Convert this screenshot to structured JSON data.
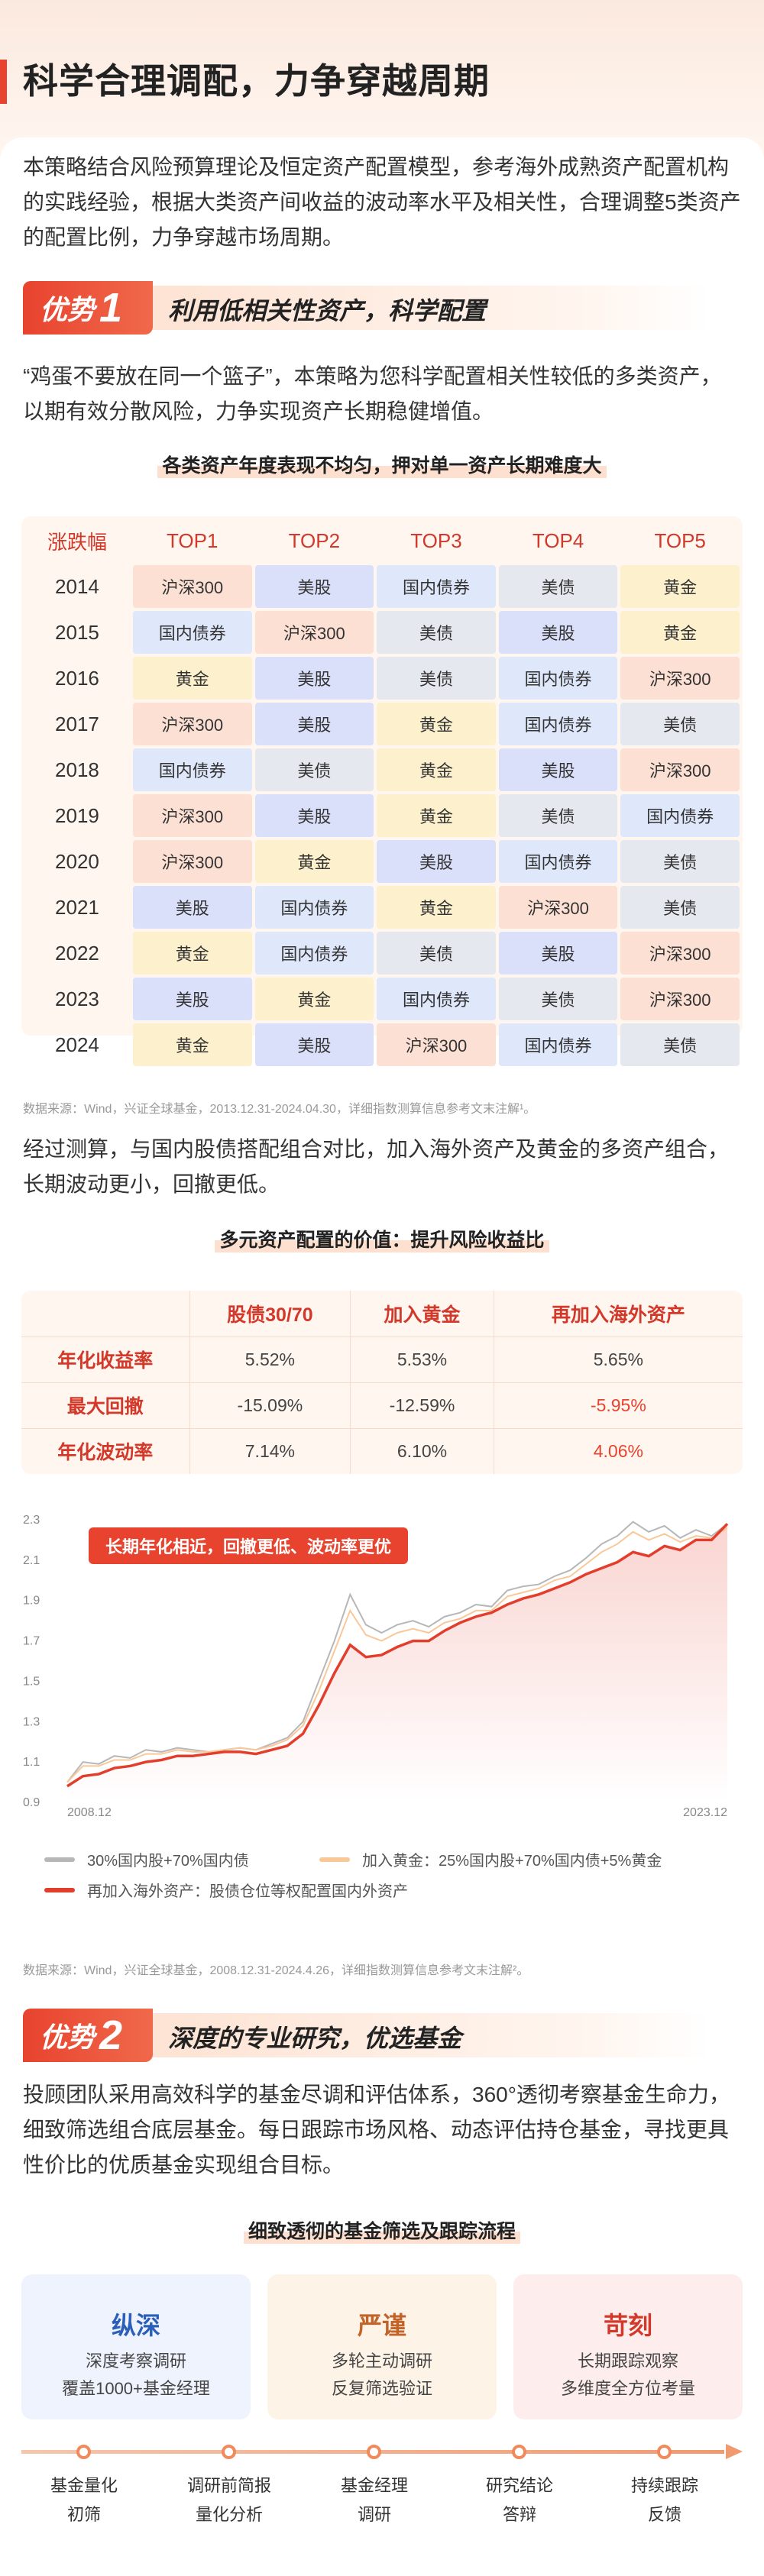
{
  "header": {
    "title": "科学合理调配，力争穿越周期"
  },
  "intro": "本策略结合风险预算理论及恒定资产配置模型，参考海外成熟资产配置机构的实践经验，根据大类资产间收益的波动率水平及相关性，合理调整5类资产的配置比例，力争穿越市场周期。",
  "adv1": {
    "word": "优势",
    "num": "1",
    "text": "利用低相关性资产，科学配置"
  },
  "adv1_para": "“鸡蛋不要放在同一个篮子”，本策略为您科学配置相关性较低的多类资产，以期有效分散风险，力争实现资产长期稳健增值。",
  "rank_title": "各类资产年度表现不均匀，押对单一资产长期难度大",
  "rank_table": {
    "headers": [
      "涨跌幅",
      "TOP1",
      "TOP2",
      "TOP3",
      "TOP4",
      "TOP5"
    ],
    "rows": [
      [
        "2014",
        "沪深300",
        "美股",
        "国内债券",
        "美债",
        "黄金"
      ],
      [
        "2015",
        "国内债券",
        "沪深300",
        "美债",
        "美股",
        "黄金"
      ],
      [
        "2016",
        "黄金",
        "美股",
        "美债",
        "国内债券",
        "沪深300"
      ],
      [
        "2017",
        "沪深300",
        "美股",
        "黄金",
        "国内债券",
        "美债"
      ],
      [
        "2018",
        "国内债券",
        "美债",
        "黄金",
        "美股",
        "沪深300"
      ],
      [
        "2019",
        "沪深300",
        "美股",
        "黄金",
        "美债",
        "国内债券"
      ],
      [
        "2020",
        "沪深300",
        "黄金",
        "美股",
        "国内债券",
        "美债"
      ],
      [
        "2021",
        "美股",
        "国内债券",
        "黄金",
        "沪深300",
        "美债"
      ],
      [
        "2022",
        "黄金",
        "国内债券",
        "美债",
        "美股",
        "沪深300"
      ],
      [
        "2023",
        "美股",
        "黄金",
        "国内债券",
        "美债",
        "沪深300"
      ],
      [
        "2024",
        "黄金",
        "美股",
        "沪深300",
        "国内债券",
        "美债"
      ]
    ],
    "asset_colors": {
      "沪深300": "#fde0d4",
      "美股": "#dbe0fa",
      "国内债券": "#dfe7fb",
      "美债": "#e6e8ef",
      "黄金": "#fdf0cc"
    }
  },
  "rank_source": "数据来源：Wind，兴证全球基金，2013.12.31-2024.04.30，详细指数测算信息参考文末注解¹。",
  "measure_para": "经过测算，与国内股债搭配组合对比，加入海外资产及黄金的多资产组合，长期波动更小，回撤更低。",
  "value_title": "多元资产配置的价值：提升风险收益比",
  "value_table": {
    "headers": [
      "",
      "股债30/70",
      "加入黄金",
      "再加入海外资产"
    ],
    "rows": [
      {
        "label": "年化收益率",
        "cells": [
          "5.52%",
          "5.53%",
          "5.65%"
        ]
      },
      {
        "label": "最大回撤",
        "cells": [
          "-15.09%",
          "-12.59%",
          "-5.95%"
        ]
      },
      {
        "label": "年化波动率",
        "cells": [
          "7.14%",
          "6.10%",
          "4.06%"
        ]
      }
    ],
    "highlight_color": "#e8432f"
  },
  "chart_data": {
    "type": "line",
    "title": "",
    "callout": "长期年化相近，回撤更低、波动率更优",
    "xlabel": "",
    "ylabel": "",
    "x_start": "2008.12",
    "x_end": "2023.12",
    "ylim": [
      0.9,
      2.3
    ],
    "yticks": [
      0.9,
      1.1,
      1.3,
      1.5,
      1.7,
      1.9,
      2.1,
      2.3
    ],
    "grid": false,
    "legend_position": "bottom",
    "series": [
      {
        "name": "30%国内股+70%国内债",
        "color": "#b7b7b7",
        "values": [
          1.0,
          1.1,
          1.09,
          1.13,
          1.12,
          1.16,
          1.15,
          1.17,
          1.16,
          1.15,
          1.16,
          1.17,
          1.16,
          1.19,
          1.22,
          1.3,
          1.5,
          1.7,
          1.93,
          1.78,
          1.74,
          1.78,
          1.8,
          1.77,
          1.82,
          1.84,
          1.88,
          1.87,
          1.95,
          1.97,
          1.98,
          2.02,
          2.05,
          2.11,
          2.18,
          2.22,
          2.29,
          2.24,
          2.27,
          2.21,
          2.25,
          2.22,
          2.28
        ]
      },
      {
        "name": "加入黄金：25%国内股+70%国内债+5%黄金",
        "color": "#f9c898",
        "values": [
          1.0,
          1.08,
          1.08,
          1.11,
          1.11,
          1.14,
          1.14,
          1.16,
          1.15,
          1.15,
          1.16,
          1.17,
          1.16,
          1.18,
          1.21,
          1.28,
          1.45,
          1.65,
          1.85,
          1.73,
          1.7,
          1.74,
          1.76,
          1.74,
          1.79,
          1.81,
          1.85,
          1.85,
          1.92,
          1.94,
          1.96,
          2.0,
          2.02,
          2.08,
          2.14,
          2.18,
          2.24,
          2.2,
          2.23,
          2.19,
          2.22,
          2.21,
          2.26
        ]
      },
      {
        "name": "再加入海外资产：股债仓位等权配置国内外资产",
        "color": "#e33d2c",
        "values": [
          0.98,
          1.03,
          1.04,
          1.07,
          1.08,
          1.1,
          1.11,
          1.13,
          1.13,
          1.14,
          1.15,
          1.15,
          1.14,
          1.16,
          1.18,
          1.24,
          1.38,
          1.54,
          1.68,
          1.62,
          1.63,
          1.67,
          1.7,
          1.7,
          1.75,
          1.79,
          1.82,
          1.84,
          1.88,
          1.91,
          1.93,
          1.96,
          1.99,
          2.03,
          2.06,
          2.09,
          2.14,
          2.12,
          2.17,
          2.15,
          2.2,
          2.2,
          2.28
        ]
      }
    ]
  },
  "chart_source": "数据来源：Wind，兴证全球基金，2008.12.31-2024.4.26，详细指数测算信息参考文末注解²。",
  "adv2": {
    "word": "优势",
    "num": "2",
    "text": "深度的专业研究，优选基金"
  },
  "adv2_para": "投顾团队采用高效科学的基金尽调和评估体系，360°透彻考察基金生命力，细致筛选组合底层基金。每日跟踪市场风格、动态评估持仓基金，寻找更具性价比的优质基金实现组合目标。",
  "fund_title": "细致透彻的基金筛选及跟踪流程",
  "fund_cols": [
    {
      "title": "纵深",
      "l1": "深度考察调研",
      "l2": "覆盖1000+基金经理",
      "color": "#2b5fb8",
      "bg": "#eef3fd"
    },
    {
      "title": "严谨",
      "l1": "多轮主动调研",
      "l2": "反复筛选验证",
      "color": "#c2632a",
      "bg": "#fdf3e7"
    },
    {
      "title": "苛刻",
      "l1": "长期跟踪观察",
      "l2": "多维度全方位考量",
      "color": "#d2392a",
      "bg": "#fdeeed"
    }
  ],
  "steps": [
    {
      "l1": "基金量化",
      "l2": "初筛"
    },
    {
      "l1": "调研前简报",
      "l2": "量化分析"
    },
    {
      "l1": "基金经理",
      "l2": "调研"
    },
    {
      "l1": "研究结论",
      "l2": "答辩"
    },
    {
      "l1": "持续跟踪",
      "l2": "反馈"
    }
  ]
}
